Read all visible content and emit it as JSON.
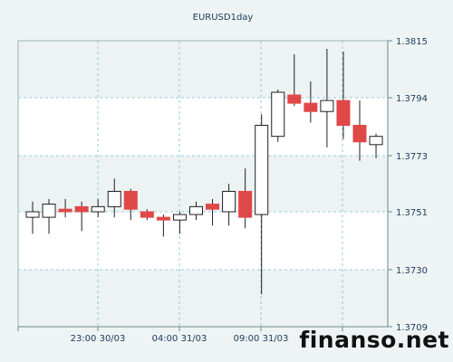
{
  "chart_data": {
    "type": "candlestick",
    "title": "EURUSD1day",
    "y_axis": {
      "ticks": [
        1.3709,
        1.373,
        1.3751,
        1.3773,
        1.3794,
        1.3815
      ],
      "tick_labels": [
        "1.3709",
        "1.3730",
        "1.3751",
        "1.3773",
        "1.3794",
        "1.3815"
      ],
      "range": [
        1.3709,
        1.3815
      ],
      "position": "right"
    },
    "x_axis": {
      "tick_labels": [
        "23:00 30/03",
        "04:00 31/03",
        "09:00 31/03"
      ]
    },
    "grid": true,
    "colors": {
      "bullish_body": "#ffffff",
      "bearish_body": "#e04848",
      "wick": "#202020",
      "alt_band": "#ffffff",
      "band": "#edf2f2",
      "grid": "#7fc4cc",
      "frame_bg": "#eef3f3",
      "text": "#1b3a5c"
    },
    "candles": [
      {
        "o": 1.3749,
        "h": 1.3755,
        "l": 1.3743,
        "c": 1.3751
      },
      {
        "o": 1.3749,
        "h": 1.3756,
        "l": 1.3743,
        "c": 1.3754
      },
      {
        "o": 1.3752,
        "h": 1.3756,
        "l": 1.3749,
        "c": 1.3751
      },
      {
        "o": 1.3753,
        "h": 1.3755,
        "l": 1.3744,
        "c": 1.3751
      },
      {
        "o": 1.3751,
        "h": 1.3756,
        "l": 1.3749,
        "c": 1.3753
      },
      {
        "o": 1.3753,
        "h": 1.3764,
        "l": 1.3749,
        "c": 1.3759
      },
      {
        "o": 1.3759,
        "h": 1.376,
        "l": 1.3748,
        "c": 1.3752
      },
      {
        "o": 1.3751,
        "h": 1.3752,
        "l": 1.3748,
        "c": 1.3749
      },
      {
        "o": 1.3749,
        "h": 1.375,
        "l": 1.3742,
        "c": 1.3748
      },
      {
        "o": 1.3748,
        "h": 1.3751,
        "l": 1.3743,
        "c": 1.375
      },
      {
        "o": 1.375,
        "h": 1.3755,
        "l": 1.3748,
        "c": 1.3753
      },
      {
        "o": 1.3754,
        "h": 1.3756,
        "l": 1.3746,
        "c": 1.3752
      },
      {
        "o": 1.3751,
        "h": 1.3762,
        "l": 1.3746,
        "c": 1.3759
      },
      {
        "o": 1.3759,
        "h": 1.3768,
        "l": 1.3745,
        "c": 1.3749
      },
      {
        "o": 1.375,
        "h": 1.3788,
        "l": 1.3721,
        "c": 1.3784
      },
      {
        "o": 1.378,
        "h": 1.3797,
        "l": 1.3778,
        "c": 1.3796
      },
      {
        "o": 1.3795,
        "h": 1.381,
        "l": 1.3791,
        "c": 1.3792
      },
      {
        "o": 1.3792,
        "h": 1.38,
        "l": 1.3785,
        "c": 1.3789
      },
      {
        "o": 1.3789,
        "h": 1.3812,
        "l": 1.3776,
        "c": 1.3793
      },
      {
        "o": 1.3793,
        "h": 1.3811,
        "l": 1.3779,
        "c": 1.3784
      },
      {
        "o": 1.3784,
        "h": 1.3793,
        "l": 1.3771,
        "c": 1.3778
      },
      {
        "o": 1.3777,
        "h": 1.3781,
        "l": 1.3772,
        "c": 1.378
      }
    ]
  },
  "watermark": "finanso.net"
}
